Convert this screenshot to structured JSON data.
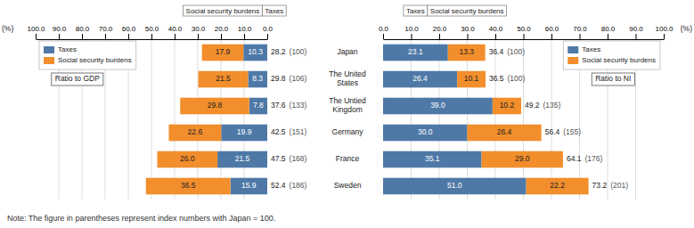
{
  "chart_data": [
    {
      "type": "bar",
      "orientation": "horizontal",
      "stacked": true,
      "data_labels": true,
      "grid": true,
      "legend": "upper left",
      "unit_label": "(%)",
      "annotations": [
        "Ratio to GDP"
      ],
      "headers": [
        "Taxes",
        "Social security burdens"
      ],
      "categories": [
        "Japan",
        "The United\nStates",
        "The Untied\nKingdom",
        "Germany",
        "France",
        "Sweden"
      ],
      "series": [
        {
          "name": "Taxes",
          "values": [
            10.3,
            8.3,
            7.8,
            19.9,
            21.5,
            15.9
          ],
          "value_labels": [
            "10.3",
            "8.3",
            "7.8",
            "19.9",
            "21.5",
            "15.9"
          ]
        },
        {
          "name": "Social security burdens",
          "values": [
            17.9,
            21.5,
            29.8,
            22.6,
            26.0,
            36.5
          ],
          "value_labels": [
            "17.9",
            "21.5",
            "29.8",
            "22.6",
            "26.0",
            "36.5"
          ]
        }
      ],
      "totals": [
        28.2,
        29.8,
        37.6,
        42.5,
        47.5,
        52.4
      ],
      "index_labels": [
        "(100)",
        "(106)",
        "(133)",
        "(151)",
        "(168)",
        "(186)"
      ],
      "xlim": [
        100,
        0
      ],
      "xticks": [
        {
          "value": 0,
          "label": "0.0"
        },
        {
          "value": 10,
          "label": "10.0"
        },
        {
          "value": 20,
          "label": "20.0"
        },
        {
          "value": 30,
          "label": "30.0"
        },
        {
          "value": 40,
          "label": "40.0"
        },
        {
          "value": 50,
          "label": "50.0"
        },
        {
          "value": 60,
          "label": "60.0"
        },
        {
          "value": 70,
          "label": "70.0"
        },
        {
          "value": 80,
          "label": "80.0"
        },
        {
          "value": 90,
          "label": "90.0"
        },
        {
          "value": 100,
          "label": "100.0"
        }
      ],
      "note": "Note:  The figure in parentheses represent index numbers with Japan = 100."
    },
    {
      "type": "bar",
      "orientation": "horizontal",
      "stacked": true,
      "data_labels": true,
      "grid": true,
      "legend": "upper right",
      "unit_label": "(%)",
      "annotations": [
        "Ratio to NI"
      ],
      "headers": [
        "Taxes",
        "Social security burdens"
      ],
      "categories": [
        "Japan",
        "The United\nStates",
        "The Untied\nKingdom",
        "Germany",
        "France",
        "Sweden"
      ],
      "series": [
        {
          "name": "Taxes",
          "values": [
            23.1,
            26.4,
            39.0,
            30.0,
            35.1,
            51.0
          ],
          "value_labels": [
            "23.1",
            "26.4",
            "39.0",
            "30.0",
            "35.1",
            "51.0"
          ]
        },
        {
          "name": "Social security burdens",
          "values": [
            13.3,
            10.1,
            10.2,
            26.4,
            29.0,
            22.2
          ],
          "value_labels": [
            "13.3",
            "10.1",
            "10.2",
            "26.4",
            "29.0",
            "22.2"
          ]
        }
      ],
      "totals": [
        36.4,
        36.5,
        49.2,
        56.4,
        64.1,
        73.2
      ],
      "index_labels": [
        "(100)",
        "(100)",
        "(135)",
        "(155)",
        "(176)",
        "(201)"
      ],
      "xlim": [
        0,
        100
      ],
      "xticks": [
        {
          "value": 0,
          "label": "0.0"
        },
        {
          "value": 10,
          "label": "10.0"
        },
        {
          "value": 20,
          "label": "20.0"
        },
        {
          "value": 30,
          "label": "30.0"
        },
        {
          "value": 40,
          "label": "40.0"
        },
        {
          "value": 50,
          "label": "50.0"
        },
        {
          "value": 60,
          "label": "60.0"
        },
        {
          "value": 70,
          "label": "70.0"
        },
        {
          "value": 80,
          "label": "80.0"
        },
        {
          "value": 90,
          "label": "90.0"
        },
        {
          "value": 100,
          "label": "100.0"
        }
      ]
    }
  ]
}
